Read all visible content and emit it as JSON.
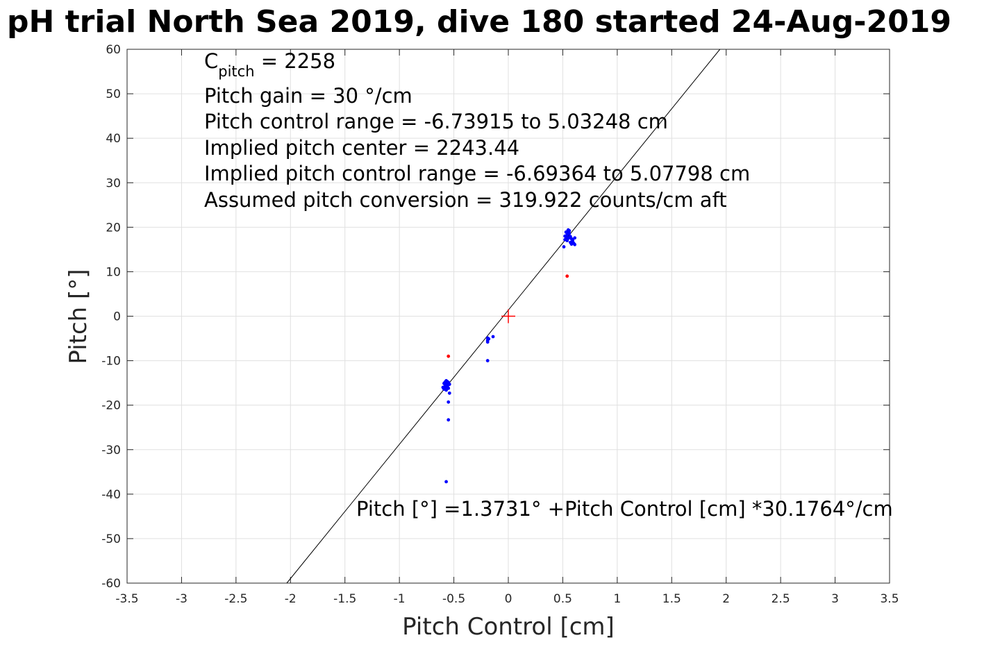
{
  "chart_data": {
    "type": "scatter",
    "title": "pH trial North Sea 2019, dive 180 started 24-Aug-2019",
    "xlabel": "Pitch Control [cm]",
    "ylabel": "Pitch [°]",
    "xlim": [
      -3.5,
      3.5
    ],
    "ylim": [
      -60,
      60
    ],
    "xticks": [
      -3.5,
      -3,
      -2.5,
      -2,
      -1.5,
      -1,
      -0.5,
      0,
      0.5,
      1,
      1.5,
      2,
      2.5,
      3,
      3.5
    ],
    "yticks": [
      -60,
      -50,
      -40,
      -30,
      -20,
      -10,
      0,
      10,
      20,
      30,
      40,
      50,
      60
    ],
    "xtick_labels": [
      "-3.5",
      "-3",
      "-2.5",
      "-2",
      "-1.5",
      "-1",
      "-0.5",
      "0",
      "0.5",
      "1",
      "1.5",
      "2",
      "2.5",
      "3",
      "3.5"
    ],
    "ytick_labels": [
      "-60",
      "-50",
      "-40",
      "-30",
      "-20",
      "-10",
      "0",
      "10",
      "20",
      "30",
      "40",
      "50",
      "60"
    ],
    "grid": true,
    "annotations": {
      "c_pitch_base": "C",
      "c_pitch_sub": "pitch",
      "c_pitch_rest": " = 2258",
      "lines": [
        "Pitch gain = 30 °/cm",
        "Pitch control range = -6.73915 to 5.03248 cm",
        "Implied pitch center = 2243.44",
        "Implied pitch control range = -6.69364 to 5.07798 cm",
        "Assumed pitch conversion = 319.922 counts/cm aft"
      ],
      "fit_equation": "Pitch [°] =1.3731° +Pitch Control [cm] *30.1764°/cm"
    },
    "fit_line": {
      "intercept": 1.3731,
      "slope": 30.1764,
      "color": "#000000"
    },
    "center_marker": {
      "x": 0,
      "y": 0,
      "color": "#ff0000"
    },
    "series": [
      {
        "color": "#0000ff",
        "points": [
          [
            -0.58,
            -14.8
          ],
          [
            -0.57,
            -15.2
          ],
          [
            -0.56,
            -15.6
          ],
          [
            -0.58,
            -16.0
          ],
          [
            -0.59,
            -16.4
          ],
          [
            -0.57,
            -14.5
          ],
          [
            -0.56,
            -15.0
          ],
          [
            -0.55,
            -15.4
          ],
          [
            -0.57,
            -15.8
          ],
          [
            -0.58,
            -15.5
          ],
          [
            -0.59,
            -15.1
          ],
          [
            -0.56,
            -14.7
          ],
          [
            -0.55,
            -16.2
          ],
          [
            -0.6,
            -16.0
          ],
          [
            -0.57,
            -16.6
          ],
          [
            -0.56,
            -15.9
          ],
          [
            -0.58,
            -14.9
          ],
          [
            -0.55,
            -14.9
          ],
          [
            -0.54,
            -15.3
          ],
          [
            -0.54,
            -17.3
          ],
          [
            -0.55,
            -19.3
          ],
          [
            -0.55,
            -23.3
          ],
          [
            -0.57,
            -37.2
          ],
          [
            -0.19,
            -4.9
          ],
          [
            -0.19,
            -5.4
          ],
          [
            -0.19,
            -5.8
          ],
          [
            -0.18,
            -5.1
          ],
          [
            -0.14,
            -4.6
          ],
          [
            -0.19,
            -10.0
          ],
          [
            0.52,
            17.2
          ],
          [
            0.53,
            17.8
          ],
          [
            0.54,
            18.3
          ],
          [
            0.55,
            18.8
          ],
          [
            0.56,
            19.2
          ],
          [
            0.54,
            19.0
          ],
          [
            0.55,
            17.5
          ],
          [
            0.57,
            17.9
          ],
          [
            0.58,
            17.4
          ],
          [
            0.59,
            16.9
          ],
          [
            0.6,
            16.4
          ],
          [
            0.58,
            16.2
          ],
          [
            0.61,
            17.6
          ],
          [
            0.56,
            18.6
          ],
          [
            0.53,
            18.9
          ],
          [
            0.54,
            17.0
          ],
          [
            0.57,
            16.6
          ],
          [
            0.52,
            18.0
          ],
          [
            0.55,
            19.4
          ],
          [
            0.59,
            17.2
          ],
          [
            0.51,
            15.6
          ],
          [
            0.61,
            16.1
          ],
          [
            0.56,
            17.7
          ]
        ]
      },
      {
        "color": "#ff0000",
        "points": [
          [
            -0.55,
            -9.0
          ],
          [
            0.54,
            9.0
          ]
        ]
      }
    ]
  }
}
